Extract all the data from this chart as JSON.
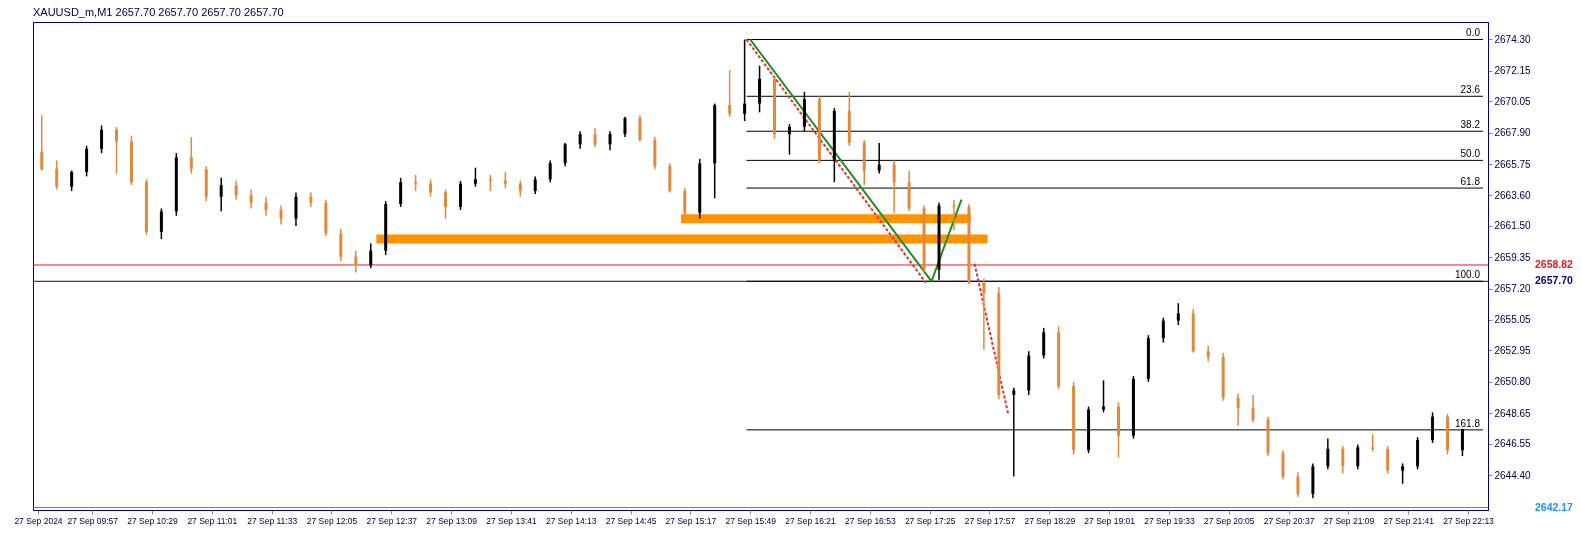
{
  "chart_data": {
    "type": "candlestick",
    "title": "XAUUSD_m,M1  2657.70 2657.70 2657.70 2657.70",
    "x": [
      "2024-09-27T09:30",
      "2024-09-27T09:38",
      "2024-09-27T09:46",
      "2024-09-27T09:54",
      "2024-09-27T10:02",
      "2024-09-27T10:10",
      "2024-09-27T10:18",
      "2024-09-27T10:26",
      "2024-09-27T10:34",
      "2024-09-27T10:42",
      "2024-09-27T10:50",
      "2024-09-27T10:58",
      "2024-09-27T11:06",
      "2024-09-27T11:14",
      "2024-09-27T11:22",
      "2024-09-27T11:30",
      "2024-09-27T11:38",
      "2024-09-27T11:46",
      "2024-09-27T11:54",
      "2024-09-27T12:02",
      "2024-09-27T12:10",
      "2024-09-27T12:18",
      "2024-09-27T12:26",
      "2024-09-27T12:34",
      "2024-09-27T12:42",
      "2024-09-27T12:50",
      "2024-09-27T12:58",
      "2024-09-27T13:06",
      "2024-09-27T13:14",
      "2024-09-27T13:22",
      "2024-09-27T13:30",
      "2024-09-27T13:38",
      "2024-09-27T13:46",
      "2024-09-27T13:54",
      "2024-09-27T14:02",
      "2024-09-27T14:10",
      "2024-09-27T14:18",
      "2024-09-27T14:26",
      "2024-09-27T14:34",
      "2024-09-27T14:42",
      "2024-09-27T14:50",
      "2024-09-27T14:58",
      "2024-09-27T15:06",
      "2024-09-27T15:14",
      "2024-09-27T15:22",
      "2024-09-27T15:30",
      "2024-09-27T15:38",
      "2024-09-27T15:46",
      "2024-09-27T15:54",
      "2024-09-27T16:02",
      "2024-09-27T16:10",
      "2024-09-27T16:18",
      "2024-09-27T16:26",
      "2024-09-27T16:34",
      "2024-09-27T16:42",
      "2024-09-27T16:50",
      "2024-09-27T16:58",
      "2024-09-27T17:06",
      "2024-09-27T17:14",
      "2024-09-27T17:22",
      "2024-09-27T17:30",
      "2024-09-27T17:38",
      "2024-09-27T17:46",
      "2024-09-27T17:54",
      "2024-09-27T18:02",
      "2024-09-27T18:10",
      "2024-09-27T18:18",
      "2024-09-27T18:26",
      "2024-09-27T18:34",
      "2024-09-27T18:42",
      "2024-09-27T18:50",
      "2024-09-27T18:58",
      "2024-09-27T19:06",
      "2024-09-27T19:14",
      "2024-09-27T19:22",
      "2024-09-27T19:30",
      "2024-09-27T19:38",
      "2024-09-27T19:46",
      "2024-09-27T19:54",
      "2024-09-27T20:02",
      "2024-09-27T20:10",
      "2024-09-27T20:18",
      "2024-09-27T20:26",
      "2024-09-27T20:34",
      "2024-09-27T20:42",
      "2024-09-27T20:50",
      "2024-09-27T20:58",
      "2024-09-27T21:06",
      "2024-09-27T21:14",
      "2024-09-27T21:22",
      "2024-09-27T21:30",
      "2024-09-27T21:38",
      "2024-09-27T21:46",
      "2024-09-27T21:54",
      "2024-09-27T22:02",
      "2024-09-27T22:10"
    ],
    "ohlc": [
      [
        2666.6,
        2669.1,
        2665.3,
        2665.4
      ],
      [
        2665.4,
        2666.0,
        2664.0,
        2664.2
      ],
      [
        2664.2,
        2665.3,
        2663.9,
        2665.2
      ],
      [
        2665.2,
        2667.0,
        2664.9,
        2666.8
      ],
      [
        2666.8,
        2668.4,
        2666.5,
        2668.1
      ],
      [
        2668.1,
        2668.3,
        2665.1,
        2667.3
      ],
      [
        2667.3,
        2667.7,
        2664.3,
        2664.5
      ],
      [
        2664.5,
        2664.7,
        2660.9,
        2661.1
      ],
      [
        2661.1,
        2662.7,
        2660.6,
        2662.5
      ],
      [
        2662.5,
        2666.5,
        2662.2,
        2666.2
      ],
      [
        2666.2,
        2667.6,
        2665.1,
        2665.4
      ],
      [
        2665.4,
        2665.6,
        2663.2,
        2663.5
      ],
      [
        2663.5,
        2664.8,
        2662.5,
        2664.3
      ],
      [
        2664.3,
        2664.6,
        2663.3,
        2663.6
      ],
      [
        2663.6,
        2664.0,
        2662.7,
        2663.1
      ],
      [
        2663.1,
        2663.5,
        2662.2,
        2662.6
      ],
      [
        2662.6,
        2662.9,
        2661.6,
        2662.0
      ],
      [
        2662.0,
        2663.8,
        2661.5,
        2663.5
      ],
      [
        2663.5,
        2663.8,
        2662.8,
        2663.1
      ],
      [
        2663.1,
        2663.3,
        2660.8,
        2661.0
      ],
      [
        2661.0,
        2661.3,
        2659.1,
        2659.4
      ],
      [
        2659.4,
        2659.8,
        2658.3,
        2658.8
      ],
      [
        2658.8,
        2660.3,
        2658.6,
        2659.8
      ],
      [
        2659.8,
        2663.2,
        2659.5,
        2663.0
      ],
      [
        2663.0,
        2664.8,
        2662.8,
        2664.5
      ],
      [
        2664.5,
        2665.0,
        2663.9,
        2664.4
      ],
      [
        2664.4,
        2664.7,
        2663.5,
        2663.8
      ],
      [
        2663.8,
        2664.0,
        2662.0,
        2662.8
      ],
      [
        2662.8,
        2664.6,
        2662.6,
        2664.4
      ],
      [
        2664.4,
        2665.5,
        2664.2,
        2664.7
      ],
      [
        2664.7,
        2665.0,
        2663.9,
        2664.6
      ],
      [
        2664.6,
        2665.2,
        2664.1,
        2664.4
      ],
      [
        2664.4,
        2664.6,
        2663.5,
        2663.9
      ],
      [
        2663.9,
        2664.9,
        2663.7,
        2664.7
      ],
      [
        2664.7,
        2666.0,
        2664.5,
        2665.8
      ],
      [
        2665.8,
        2667.2,
        2665.6,
        2667.1
      ],
      [
        2667.1,
        2668.0,
        2666.8,
        2667.8
      ],
      [
        2667.8,
        2668.2,
        2666.9,
        2667.1
      ],
      [
        2667.1,
        2668.0,
        2666.7,
        2667.8
      ],
      [
        2667.8,
        2669.0,
        2667.6,
        2668.9
      ],
      [
        2668.9,
        2669.1,
        2667.3,
        2667.4
      ],
      [
        2667.4,
        2667.6,
        2665.4,
        2665.6
      ],
      [
        2665.6,
        2665.8,
        2663.8,
        2663.9
      ],
      [
        2663.9,
        2664.1,
        2662.1,
        2662.4
      ],
      [
        2662.4,
        2666.1,
        2662.0,
        2665.8
      ],
      [
        2665.8,
        2669.9,
        2663.4,
        2669.8
      ],
      [
        2669.8,
        2672.2,
        2669.0,
        2669.2
      ],
      [
        2669.2,
        2674.3,
        2668.7,
        2669.9
      ],
      [
        2669.9,
        2672.5,
        2669.3,
        2671.6
      ],
      [
        2671.6,
        2671.8,
        2667.5,
        2667.8
      ],
      [
        2667.8,
        2668.5,
        2666.4,
        2668.3
      ],
      [
        2668.3,
        2670.7,
        2668.0,
        2670.2
      ],
      [
        2670.2,
        2670.4,
        2665.8,
        2666.0
      ],
      [
        2666.0,
        2669.6,
        2664.5,
        2669.4
      ],
      [
        2669.4,
        2670.7,
        2667.0,
        2667.2
      ],
      [
        2667.2,
        2667.4,
        2664.3,
        2665.3
      ],
      [
        2665.3,
        2667.2,
        2665.1,
        2665.7
      ],
      [
        2665.7,
        2666.0,
        2662.4,
        2664.5
      ],
      [
        2664.5,
        2665.3,
        2662.5,
        2662.7
      ],
      [
        2662.7,
        2662.9,
        2658.3,
        2658.5
      ],
      [
        2658.5,
        2663.1,
        2657.8,
        2662.9
      ],
      [
        2662.9,
        2663.3,
        2661.2,
        2662.8
      ],
      [
        2662.8,
        2663.0,
        2657.5,
        2657.6
      ],
      [
        2657.6,
        2657.9,
        2653.0,
        2656.9
      ],
      [
        2656.9,
        2657.3,
        2649.6,
        2649.9
      ],
      [
        2649.9,
        2650.4,
        2644.3,
        2650.2
      ],
      [
        2650.2,
        2652.9,
        2649.9,
        2652.6
      ],
      [
        2652.6,
        2654.5,
        2652.4,
        2654.2
      ],
      [
        2654.2,
        2654.6,
        2650.3,
        2650.5
      ],
      [
        2650.5,
        2650.8,
        2645.8,
        2646.1
      ],
      [
        2646.1,
        2649.1,
        2645.9,
        2648.9
      ],
      [
        2648.9,
        2650.9,
        2648.7,
        2649.1
      ],
      [
        2649.1,
        2649.4,
        2645.6,
        2647.1
      ],
      [
        2647.1,
        2651.2,
        2646.9,
        2651.0
      ],
      [
        2651.0,
        2654.0,
        2650.8,
        2653.8
      ],
      [
        2653.8,
        2655.2,
        2653.5,
        2655.0
      ],
      [
        2655.0,
        2656.2,
        2654.7,
        2655.5
      ],
      [
        2655.5,
        2655.8,
        2652.8,
        2652.9
      ],
      [
        2652.9,
        2653.3,
        2652.2,
        2652.5
      ],
      [
        2652.5,
        2652.8,
        2649.5,
        2649.7
      ],
      [
        2649.7,
        2650.0,
        2647.8,
        2649.0
      ],
      [
        2649.0,
        2649.9,
        2648.0,
        2648.2
      ],
      [
        2648.2,
        2648.4,
        2645.7,
        2645.9
      ],
      [
        2645.9,
        2646.1,
        2644.1,
        2644.3
      ],
      [
        2644.3,
        2644.6,
        2642.9,
        2643.1
      ],
      [
        2643.1,
        2645.2,
        2642.8,
        2645.0
      ],
      [
        2645.0,
        2646.9,
        2644.8,
        2646.2
      ],
      [
        2646.2,
        2646.4,
        2644.5,
        2645.0
      ],
      [
        2645.0,
        2646.5,
        2644.8,
        2646.3
      ],
      [
        2646.3,
        2647.2,
        2646.0,
        2646.2
      ],
      [
        2646.2,
        2646.4,
        2644.5,
        2644.7
      ],
      [
        2644.7,
        2645.2,
        2643.8,
        2645.0
      ],
      [
        2645.0,
        2647.0,
        2644.8,
        2646.8
      ],
      [
        2646.8,
        2648.7,
        2646.6,
        2648.4
      ],
      [
        2648.4,
        2648.6,
        2645.8,
        2646.1
      ],
      [
        2646.1,
        2648.1,
        2645.7,
        2647.9
      ]
    ],
    "colors": [
      "#e0893c",
      "#e0893c",
      "#000000",
      "#000000",
      "#000000",
      "#e0893c",
      "#e0893c",
      "#e0893c",
      "#000000",
      "#000000",
      "#e0893c",
      "#e0893c",
      "#000000",
      "#e0893c",
      "#e0893c",
      "#e0893c",
      "#e0893c",
      "#000000",
      "#e0893c",
      "#e0893c",
      "#e0893c",
      "#e0893c",
      "#000000",
      "#000000",
      "#000000",
      "#e0893c",
      "#e0893c",
      "#e0893c",
      "#000000",
      "#000000",
      "#e0893c",
      "#e0893c",
      "#e0893c",
      "#000000",
      "#000000",
      "#000000",
      "#000000",
      "#e0893c",
      "#000000",
      "#000000",
      "#e0893c",
      "#e0893c",
      "#e0893c",
      "#e0893c",
      "#000000",
      "#000000",
      "#e0893c",
      "#000000",
      "#000000",
      "#e0893c",
      "#000000",
      "#000000",
      "#e0893c",
      "#000000",
      "#e0893c",
      "#e0893c",
      "#000000",
      "#e0893c",
      "#e0893c",
      "#e0893c",
      "#000000",
      "#e0893c",
      "#e0893c",
      "#e0893c",
      "#e0893c",
      "#000000",
      "#000000",
      "#000000",
      "#e0893c",
      "#e0893c",
      "#000000",
      "#000000",
      "#e0893c",
      "#000000",
      "#000000",
      "#000000",
      "#000000",
      "#e0893c",
      "#e0893c",
      "#e0893c",
      "#e0893c",
      "#e0893c",
      "#e0893c",
      "#e0893c",
      "#e0893c",
      "#000000",
      "#000000",
      "#e0893c",
      "#000000",
      "#e0893c",
      "#e0893c",
      "#000000",
      "#000000",
      "#000000",
      "#e0893c",
      "#000000"
    ],
    "series": [
      {
        "type": "line",
        "color": "#ff9400",
        "x": [
          "2024-09-27T15:12",
          "2024-09-27T17:47"
        ],
        "values": [
          2662.0,
          2662.0
        ]
      },
      {
        "type": "line",
        "color": "#ff9400",
        "x": [
          "2024-09-27T12:29",
          "2024-09-27T17:56"
        ],
        "values": [
          2660.6,
          2660.6
        ]
      },
      {
        "type": "line",
        "name": "0.0",
        "color": "#000000",
        "x": [
          "2024-09-27T15:47",
          "2024-09-27T22:21"
        ],
        "values": [
          2674.3,
          2674.3
        ]
      },
      {
        "type": "line",
        "name": "23.6",
        "color": "#000000",
        "x": [
          "2024-09-27T15:47",
          "2024-09-27T22:21"
        ],
        "values": [
          2670.4,
          2670.4
        ]
      },
      {
        "type": "line",
        "name": "38.2",
        "color": "#000000",
        "x": [
          "2024-09-27T15:47",
          "2024-09-27T22:21"
        ],
        "values": [
          2668.0,
          2668.0
        ]
      },
      {
        "type": "line",
        "name": "50.0",
        "color": "#000000",
        "x": [
          "2024-09-27T15:47",
          "2024-09-27T22:21"
        ],
        "values": [
          2666.0,
          2666.0
        ]
      },
      {
        "type": "line",
        "name": "61.8",
        "color": "#000000",
        "x": [
          "2024-09-27T15:47",
          "2024-09-27T22:21"
        ],
        "values": [
          2664.1,
          2664.1
        ]
      },
      {
        "type": "line",
        "name": "100.0",
        "color": "#000000",
        "x": [
          "2024-09-27T15:47",
          "2024-09-27T22:21"
        ],
        "values": [
          2657.7,
          2657.7
        ]
      },
      {
        "type": "line",
        "name": "161.8",
        "color": "#000000",
        "x": [
          "2024-09-27T15:47",
          "2024-09-27T22:21"
        ],
        "values": [
          2647.5,
          2647.5
        ]
      },
      {
        "type": "line",
        "color": "#228b22",
        "x": [
          "2024-09-27T15:49",
          "2024-09-27T17:26",
          "2024-09-27T17:42"
        ],
        "values": [
          2674.3,
          2657.7,
          2663.3
        ]
      },
      {
        "type": "line",
        "color": "#e03030",
        "line_style": "dashed",
        "x": [
          "2024-09-27T15:47",
          "2024-09-27T17:23",
          "2024-09-27T17:30",
          "2024-09-27T17:49",
          "2024-09-27T18:07"
        ],
        "values": [
          2674.3,
          2657.6,
          null,
          2658.9,
          2648.6
        ]
      }
    ],
    "ref_lines": [
      {
        "axis": "y",
        "value": 2658.82,
        "label": "2658.82",
        "color": "#e02020"
      },
      {
        "axis": "y",
        "value": 2657.7,
        "label": "2657.70",
        "color": "#0a0a6e"
      },
      {
        "axis": "y",
        "value": 2642.17,
        "label": "2642.17",
        "color": "#1e90ff"
      }
    ],
    "xlim": [
      "2024-09-27T09:28",
      "2024-09-27T22:21"
    ],
    "xticks": [
      {
        "value": "2024-09-27T09:28",
        "label": "27 Sep 2024"
      },
      {
        "value": "2024-09-27T09:57",
        "label": "27 Sep 09:57"
      },
      {
        "value": "2024-09-27T10:29",
        "label": "27 Sep 10:29"
      },
      {
        "value": "2024-09-27T11:01",
        "label": "27 Sep 11:01"
      },
      {
        "value": "2024-09-27T11:33",
        "label": "27 Sep 11:33"
      },
      {
        "value": "2024-09-27T12:05",
        "label": "27 Sep 12:05"
      },
      {
        "value": "2024-09-27T12:37",
        "label": "27 Sep 12:37"
      },
      {
        "value": "2024-09-27T13:09",
        "label": "27 Sep 13:09"
      },
      {
        "value": "2024-09-27T13:41",
        "label": "27 Sep 13:41"
      },
      {
        "value": "2024-09-27T14:13",
        "label": "27 Sep 14:13"
      },
      {
        "value": "2024-09-27T14:45",
        "label": "27 Sep 14:45"
      },
      {
        "value": "2024-09-27T15:17",
        "label": "27 Sep 15:17"
      },
      {
        "value": "2024-09-27T15:49",
        "label": "27 Sep 15:49"
      },
      {
        "value": "2024-09-27T16:21",
        "label": "27 Sep 16:21"
      },
      {
        "value": "2024-09-27T16:53",
        "label": "27 Sep 16:53"
      },
      {
        "value": "2024-09-27T17:25",
        "label": "27 Sep 17:25"
      },
      {
        "value": "2024-09-27T17:57",
        "label": "27 Sep 17:57"
      },
      {
        "value": "2024-09-27T18:29",
        "label": "27 Sep 18:29"
      },
      {
        "value": "2024-09-27T19:01",
        "label": "27 Sep 19:01"
      },
      {
        "value": "2024-09-27T19:33",
        "label": "27 Sep 19:33"
      },
      {
        "value": "2024-09-27T20:05",
        "label": "27 Sep 20:05"
      },
      {
        "value": "2024-09-27T20:37",
        "label": "27 Sep 20:37"
      },
      {
        "value": "2024-09-27T21:09",
        "label": "27 Sep 21:09"
      },
      {
        "value": "2024-09-27T21:41",
        "label": "27 Sep 21:41"
      },
      {
        "value": "2024-09-27T22:13",
        "label": "27 Sep 22:13"
      }
    ],
    "ylim": [
      2642.0,
      2675.5
    ],
    "yticks": [
      {
        "value": 2674.3,
        "label": "2674.30"
      },
      {
        "value": 2672.15,
        "label": "2672.15"
      },
      {
        "value": 2670.05,
        "label": "2670.05"
      },
      {
        "value": 2667.9,
        "label": "2667.90"
      },
      {
        "value": 2665.75,
        "label": "2665.75"
      },
      {
        "value": 2663.6,
        "label": "2663.60"
      },
      {
        "value": 2661.5,
        "label": "2661.50"
      },
      {
        "value": 2659.35,
        "label": "2659.35"
      },
      {
        "value": 2657.2,
        "label": "2657.20"
      },
      {
        "value": 2655.05,
        "label": "2655.05"
      },
      {
        "value": 2652.95,
        "label": "2652.95"
      },
      {
        "value": 2650.8,
        "label": "2650.80"
      },
      {
        "value": 2648.65,
        "label": "2648.65"
      },
      {
        "value": 2646.55,
        "label": "2646.55"
      },
      {
        "value": 2644.4,
        "label": "2644.40"
      }
    ]
  }
}
